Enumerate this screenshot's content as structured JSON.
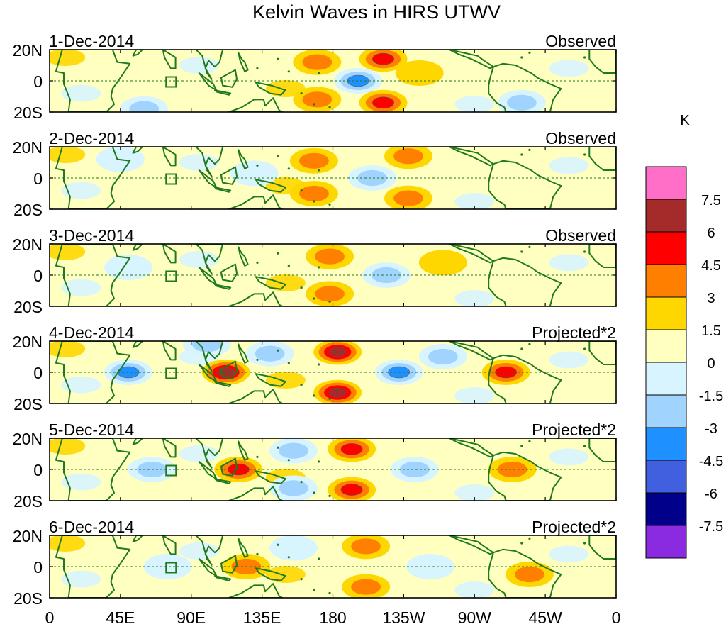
{
  "title": "Kelvin Waves in HIRS UTWV",
  "panels": [
    {
      "date": "1-Dec-2014",
      "label": "Observed"
    },
    {
      "date": "2-Dec-2014",
      "label": "Observed"
    },
    {
      "date": "3-Dec-2014",
      "label": "Observed"
    },
    {
      "date": "4-Dec-2014",
      "label": "Projected*2"
    },
    {
      "date": "5-Dec-2014",
      "label": "Projected*2"
    },
    {
      "date": "6-Dec-2014",
      "label": "Projected*2"
    }
  ],
  "lat_labels": [
    "20N",
    "0",
    "20S"
  ],
  "lon_labels": [
    "0",
    "45E",
    "90E",
    "135E",
    "180",
    "135W",
    "90W",
    "45W",
    "0"
  ],
  "colorbar": {
    "unit": "K",
    "levels": [
      "7.5",
      "6",
      "4.5",
      "3",
      "1.5",
      "0",
      "-1.5",
      "-3",
      "-4.5",
      "-6",
      "-7.5"
    ],
    "colors": [
      "#ff6ec7",
      "#a52a2a",
      "#ff0000",
      "#ff7f00",
      "#ffd700",
      "#ffffc0",
      "#d8f4ff",
      "#a0d4ff",
      "#1e90ff",
      "#4060e0",
      "#00008b",
      "#8a2be2"
    ]
  },
  "chart_data": {
    "type": "heatmap",
    "title": "Kelvin Waves in HIRS UTWV",
    "unit": "K",
    "x_range": [
      0,
      360
    ],
    "y_range": [
      -20,
      20
    ],
    "x_ticks": [
      "0",
      "45E",
      "90E",
      "135E",
      "180",
      "135W",
      "90W",
      "45W",
      "0"
    ],
    "y_ticks": [
      "20N",
      "0",
      "20S"
    ],
    "levels": [
      -7.5,
      -6,
      -4.5,
      -3,
      -1.5,
      0,
      1.5,
      3,
      4.5,
      6,
      7.5
    ],
    "panels": [
      {
        "date": "1-Dec-2014",
        "type": "Observed",
        "features": [
          {
            "lon": 196,
            "lat": 0,
            "value": -4.5
          },
          {
            "lon": 212,
            "lat": 14,
            "value": 4.5
          },
          {
            "lon": 212,
            "lat": -14,
            "value": 4.5
          },
          {
            "lon": 170,
            "lat": 12,
            "value": 3
          },
          {
            "lon": 170,
            "lat": -12,
            "value": 3
          },
          {
            "lon": 235,
            "lat": 5,
            "value": 1.5
          },
          {
            "lon": 60,
            "lat": -18,
            "value": -3
          },
          {
            "lon": 300,
            "lat": -14,
            "value": -3
          }
        ]
      },
      {
        "date": "2-Dec-2014",
        "type": "Observed",
        "features": [
          {
            "lon": 205,
            "lat": 0,
            "value": -3
          },
          {
            "lon": 168,
            "lat": 11,
            "value": 3
          },
          {
            "lon": 168,
            "lat": -10,
            "value": 3
          },
          {
            "lon": 228,
            "lat": 14,
            "value": 3
          },
          {
            "lon": 228,
            "lat": -13,
            "value": 3
          },
          {
            "lon": 130,
            "lat": 3,
            "value": -1.5
          },
          {
            "lon": 45,
            "lat": 12,
            "value": -1.5
          }
        ]
      },
      {
        "date": "3-Dec-2014",
        "type": "Observed",
        "features": [
          {
            "lon": 178,
            "lat": 12,
            "value": 3
          },
          {
            "lon": 178,
            "lat": -12,
            "value": 3
          },
          {
            "lon": 214,
            "lat": 0,
            "value": -3
          },
          {
            "lon": 250,
            "lat": 8,
            "value": 1.5
          },
          {
            "lon": 50,
            "lat": 5,
            "value": -1.5
          }
        ]
      },
      {
        "date": "4-Dec-2014",
        "type": "Projected*2",
        "features": [
          {
            "lon": 183,
            "lat": 13,
            "value": 6
          },
          {
            "lon": 183,
            "lat": -13,
            "value": 6
          },
          {
            "lon": 222,
            "lat": 0,
            "value": -4.5
          },
          {
            "lon": 50,
            "lat": 0,
            "value": -4.5
          },
          {
            "lon": 112,
            "lat": 0,
            "value": 6
          },
          {
            "lon": 290,
            "lat": 0,
            "value": 4.5
          },
          {
            "lon": 140,
            "lat": 12,
            "value": -3
          },
          {
            "lon": 250,
            "lat": 10,
            "value": -3
          },
          {
            "lon": 100,
            "lat": 18,
            "value": -3
          }
        ]
      },
      {
        "date": "5-Dec-2014",
        "type": "Projected*2",
        "features": [
          {
            "lon": 192,
            "lat": 13,
            "value": 4.5
          },
          {
            "lon": 192,
            "lat": -13,
            "value": 4.5
          },
          {
            "lon": 120,
            "lat": 0,
            "value": 4.5
          },
          {
            "lon": 65,
            "lat": 0,
            "value": -3
          },
          {
            "lon": 232,
            "lat": 0,
            "value": -3
          },
          {
            "lon": 294,
            "lat": 0,
            "value": 3
          },
          {
            "lon": 155,
            "lat": 12,
            "value": -3
          },
          {
            "lon": 155,
            "lat": -12,
            "value": -3
          }
        ]
      },
      {
        "date": "6-Dec-2014",
        "type": "Projected*2",
        "features": [
          {
            "lon": 201,
            "lat": 13,
            "value": 3
          },
          {
            "lon": 201,
            "lat": -13,
            "value": 3
          },
          {
            "lon": 125,
            "lat": 0,
            "value": 3
          },
          {
            "lon": 75,
            "lat": 0,
            "value": -1.5
          },
          {
            "lon": 242,
            "lat": 0,
            "value": -1.5
          },
          {
            "lon": 155,
            "lat": 12,
            "value": -1.5
          },
          {
            "lon": 305,
            "lat": -5,
            "value": 3
          }
        ]
      }
    ]
  }
}
